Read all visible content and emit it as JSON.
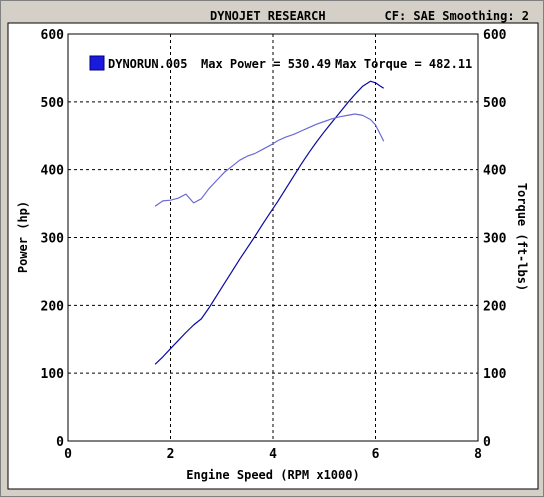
{
  "header": {
    "title": "DYNOJET RESEARCH",
    "settings": "CF: SAE  Smoothing: 2"
  },
  "chart_data": {
    "type": "line",
    "title": "",
    "xlabel": "Engine Speed (RPM x1000)",
    "ylabel": "Power (hp)",
    "y2label": "Torque (ft-lbs)",
    "xlim": [
      0,
      8
    ],
    "ylim": [
      0,
      600
    ],
    "y2lim": [
      0,
      600
    ],
    "xticks": [
      "0",
      "2",
      "4",
      "6",
      "8"
    ],
    "yticks": [
      "0",
      "100",
      "200",
      "300",
      "400",
      "500",
      "600"
    ],
    "y2ticks": [
      "0",
      "100",
      "200",
      "300",
      "400",
      "500",
      "600"
    ],
    "grid": true,
    "legend": {
      "placement": "top-left",
      "run": "DYNORUN.005",
      "max_power_label": "Max Power = 530.49",
      "max_torque_label": "Max Torque = 482.11",
      "swatch_color": "#1a1adc"
    },
    "series": [
      {
        "key": "power",
        "axis": "left",
        "color": "#0a0aa0",
        "x": [
          1.7,
          1.85,
          2.0,
          2.15,
          2.3,
          2.45,
          2.6,
          2.75,
          2.9,
          3.05,
          3.2,
          3.35,
          3.5,
          3.65,
          3.8,
          3.95,
          4.1,
          4.25,
          4.4,
          4.55,
          4.7,
          4.85,
          5.0,
          5.15,
          5.3,
          5.45,
          5.6,
          5.75,
          5.9,
          6.0,
          6.08,
          6.16
        ],
        "y": [
          113,
          124,
          136,
          148,
          160,
          171,
          180,
          196,
          214,
          232,
          250,
          268,
          285,
          302,
          320,
          337,
          354,
          372,
          390,
          408,
          425,
          441,
          456,
          470,
          484,
          498,
          511,
          523,
          530.49,
          528,
          524,
          520
        ]
      },
      {
        "key": "torque",
        "axis": "right",
        "color": "#6a6ad6",
        "x": [
          1.7,
          1.85,
          2.0,
          2.15,
          2.3,
          2.45,
          2.6,
          2.75,
          2.9,
          3.05,
          3.2,
          3.35,
          3.5,
          3.65,
          3.8,
          3.95,
          4.1,
          4.25,
          4.4,
          4.55,
          4.7,
          4.85,
          5.0,
          5.15,
          5.3,
          5.45,
          5.6,
          5.75,
          5.9,
          6.0,
          6.08,
          6.16
        ],
        "y": [
          346,
          354,
          355,
          358,
          364,
          351,
          357,
          372,
          384,
          396,
          405,
          414,
          420,
          424,
          430,
          436,
          443,
          448,
          452,
          457,
          462,
          467,
          471,
          475,
          478,
          480,
          482.11,
          480,
          474,
          466,
          454,
          442
        ]
      }
    ]
  }
}
